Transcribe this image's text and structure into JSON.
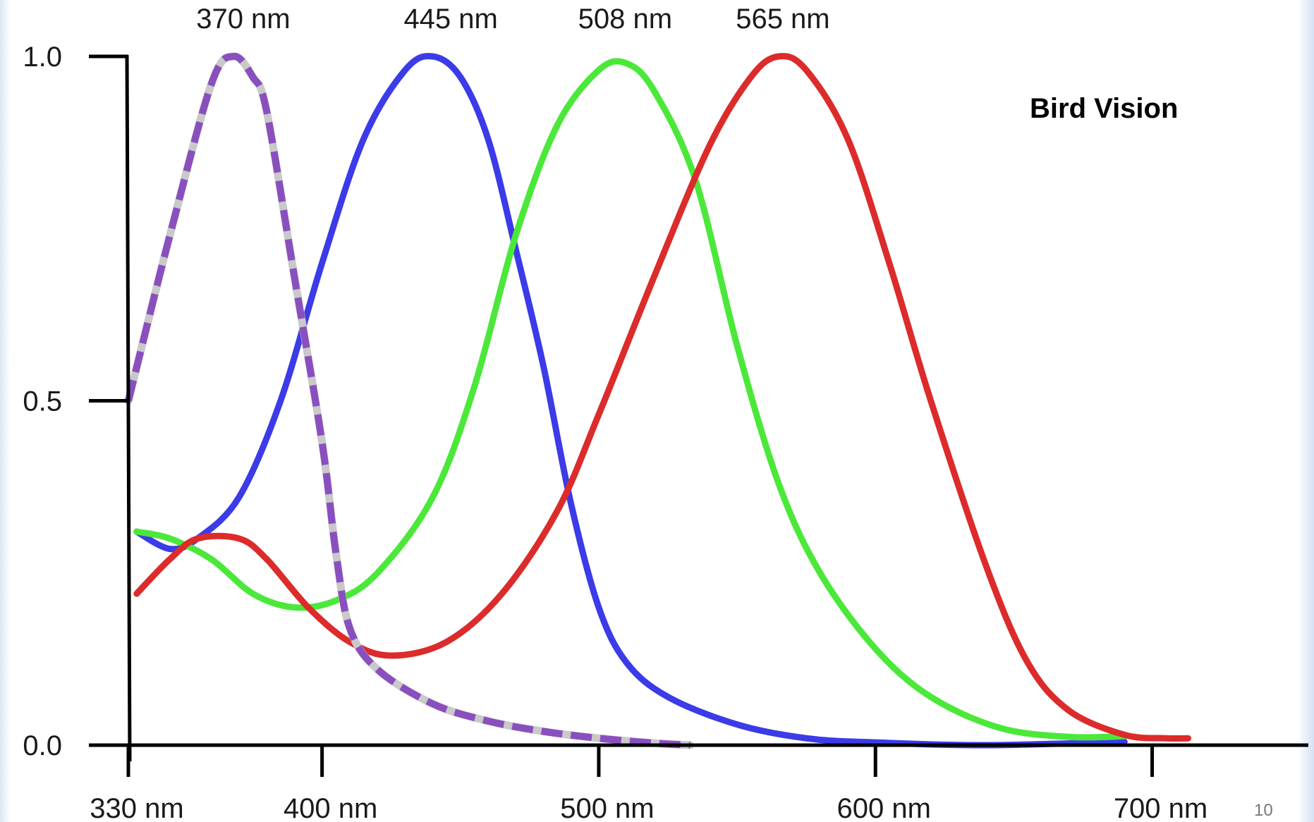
{
  "slide": {
    "page_number": "10"
  },
  "chart_data": {
    "type": "line",
    "title": "Bird Vision",
    "xlabel": "",
    "ylabel": "",
    "xlim": [
      330,
      720
    ],
    "ylim": [
      0,
      1.0
    ],
    "x_ticks": [
      {
        "value": 330,
        "label": "330 nm"
      },
      {
        "value": 400,
        "label": "400 nm"
      },
      {
        "value": 500,
        "label": "500 nm"
      },
      {
        "value": 600,
        "label": "600 nm"
      },
      {
        "value": 700,
        "label": "700 nm"
      }
    ],
    "y_ticks": [
      {
        "value": 0.0,
        "label": "0.0"
      },
      {
        "value": 0.5,
        "label": "0.5"
      },
      {
        "value": 1.0,
        "label": "1.0"
      }
    ],
    "peak_labels": [
      {
        "x": 370,
        "label": "370 nm"
      },
      {
        "x": 445,
        "label": "445 nm"
      },
      {
        "x": 508,
        "label": "508 nm"
      },
      {
        "x": 565,
        "label": "565 nm"
      }
    ],
    "series": [
      {
        "peak": 370,
        "color": "#8a4fbf",
        "dashed": true,
        "points": [
          [
            330,
            0.5
          ],
          [
            345,
            0.74
          ],
          [
            360,
            0.96
          ],
          [
            368,
            1.0
          ],
          [
            375,
            0.97
          ],
          [
            380,
            0.92
          ],
          [
            390,
            0.68
          ],
          [
            400,
            0.44
          ],
          [
            405,
            0.28
          ],
          [
            410,
            0.17
          ],
          [
            420,
            0.11
          ],
          [
            440,
            0.06
          ],
          [
            460,
            0.035
          ],
          [
            480,
            0.02
          ],
          [
            500,
            0.01
          ],
          [
            520,
            0.003
          ],
          [
            533,
            0.0
          ]
        ]
      },
      {
        "peak": 445,
        "color": "#3b3be8",
        "dashed": false,
        "points": [
          [
            333,
            0.31
          ],
          [
            345,
            0.285
          ],
          [
            355,
            0.3
          ],
          [
            370,
            0.36
          ],
          [
            385,
            0.5
          ],
          [
            400,
            0.7
          ],
          [
            415,
            0.88
          ],
          [
            430,
            0.98
          ],
          [
            440,
            1.0
          ],
          [
            450,
            0.97
          ],
          [
            460,
            0.88
          ],
          [
            470,
            0.72
          ],
          [
            480,
            0.55
          ],
          [
            490,
            0.35
          ],
          [
            500,
            0.2
          ],
          [
            510,
            0.12
          ],
          [
            525,
            0.07
          ],
          [
            550,
            0.03
          ],
          [
            575,
            0.01
          ],
          [
            600,
            0.004
          ],
          [
            640,
            0.0
          ],
          [
            690,
            0.005
          ]
        ]
      },
      {
        "peak": 508,
        "color": "#4be83a",
        "dashed": false,
        "points": [
          [
            333,
            0.31
          ],
          [
            345,
            0.3
          ],
          [
            360,
            0.27
          ],
          [
            375,
            0.22
          ],
          [
            390,
            0.2
          ],
          [
            405,
            0.21
          ],
          [
            420,
            0.25
          ],
          [
            440,
            0.36
          ],
          [
            455,
            0.52
          ],
          [
            470,
            0.74
          ],
          [
            485,
            0.9
          ],
          [
            500,
            0.98
          ],
          [
            510,
            0.99
          ],
          [
            520,
            0.95
          ],
          [
            535,
            0.82
          ],
          [
            550,
            0.58
          ],
          [
            565,
            0.38
          ],
          [
            580,
            0.25
          ],
          [
            600,
            0.14
          ],
          [
            620,
            0.07
          ],
          [
            645,
            0.025
          ],
          [
            670,
            0.012
          ],
          [
            690,
            0.013
          ]
        ]
      },
      {
        "peak": 565,
        "color": "#dc2b2b",
        "dashed": false,
        "points": [
          [
            333,
            0.22
          ],
          [
            345,
            0.27
          ],
          [
            355,
            0.3
          ],
          [
            370,
            0.3
          ],
          [
            380,
            0.27
          ],
          [
            395,
            0.2
          ],
          [
            410,
            0.15
          ],
          [
            425,
            0.13
          ],
          [
            445,
            0.15
          ],
          [
            465,
            0.22
          ],
          [
            485,
            0.34
          ],
          [
            500,
            0.48
          ],
          [
            520,
            0.68
          ],
          [
            540,
            0.87
          ],
          [
            555,
            0.97
          ],
          [
            565,
            1.0
          ],
          [
            575,
            0.98
          ],
          [
            590,
            0.88
          ],
          [
            605,
            0.7
          ],
          [
            620,
            0.5
          ],
          [
            640,
            0.26
          ],
          [
            655,
            0.12
          ],
          [
            670,
            0.05
          ],
          [
            690,
            0.015
          ],
          [
            705,
            0.01
          ],
          [
            713,
            0.01
          ]
        ]
      }
    ]
  }
}
